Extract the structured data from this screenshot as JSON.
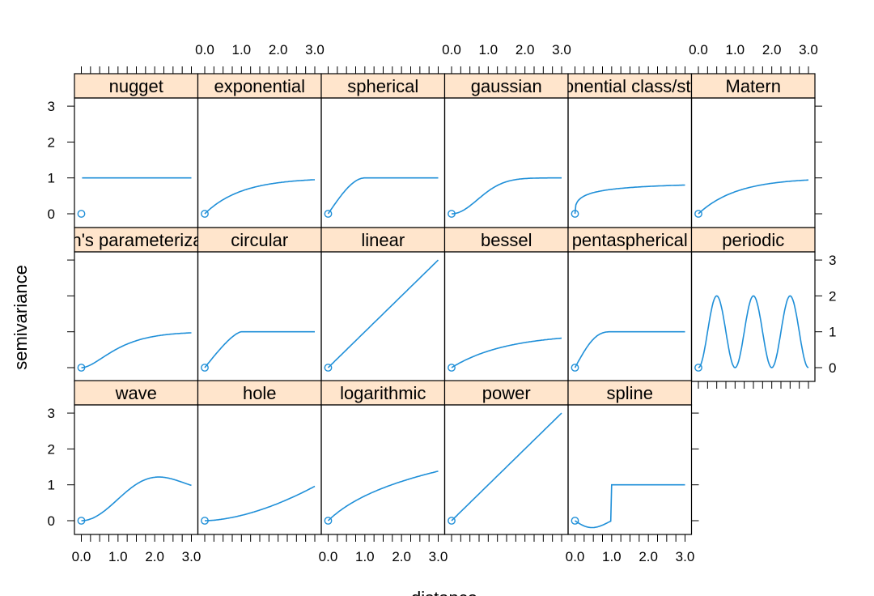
{
  "chart_data": {
    "type": "line",
    "layout": "trellis",
    "xlabel": "distance",
    "ylabel": "semivariance",
    "xlim": [
      0,
      3
    ],
    "ylim": [
      0,
      3
    ],
    "x_ticks": [
      "0.0",
      "1.0",
      "2.0",
      "3.0"
    ],
    "y_ticks": [
      "0",
      "1",
      "2",
      "3"
    ],
    "colors": {
      "line": "#1f8fd8",
      "strip": "#ffe5cc",
      "border": "#000000"
    },
    "panels": [
      {
        "name": "nugget",
        "model": "nugget",
        "x": [
          0,
          0.02,
          3
        ],
        "y": [
          0,
          1,
          1
        ]
      },
      {
        "name": "exponential",
        "model": "exponential"
      },
      {
        "name": "spherical",
        "model": "spherical"
      },
      {
        "name": "gaussian",
        "model": "gaussian"
      },
      {
        "name": "exponential class/stable",
        "model": "stable"
      },
      {
        "name": "Matern",
        "model": "matern"
      },
      {
        "name": "Stein's parameterization",
        "model": "stein"
      },
      {
        "name": "circular",
        "model": "circular"
      },
      {
        "name": "linear",
        "model": "linear"
      },
      {
        "name": "bessel",
        "model": "bessel"
      },
      {
        "name": "pentaspherical",
        "model": "pentaspherical"
      },
      {
        "name": "periodic",
        "model": "periodic"
      },
      {
        "name": "wave",
        "model": "wave"
      },
      {
        "name": "hole",
        "model": "hole"
      },
      {
        "name": "logarithmic",
        "model": "logarithmic"
      },
      {
        "name": "power",
        "model": "power"
      },
      {
        "name": "spline",
        "model": "spline"
      }
    ]
  }
}
